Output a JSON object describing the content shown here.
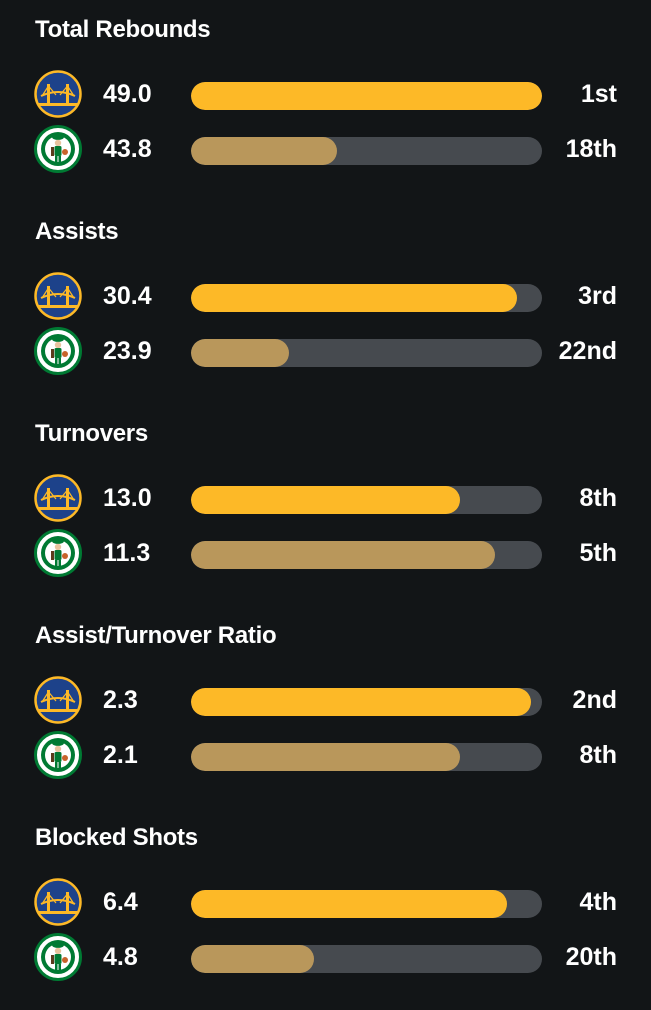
{
  "colors": {
    "background": "#121517",
    "bar_track": "#464a4f",
    "warriors_fill": "#fdb927",
    "celtics_fill": "#b9975b",
    "warriors_blue": "#1d428a",
    "celtics_green": "#007a33"
  },
  "teams": {
    "warriors": {
      "icon": "warriors-logo-icon"
    },
    "celtics": {
      "icon": "celtics-logo-icon"
    }
  },
  "sections": [
    {
      "title": "Total Rebounds",
      "rows": [
        {
          "team": "warriors",
          "value": "49.0",
          "rank": "1st",
          "fill": 1.0
        },
        {
          "team": "celtics",
          "value": "43.8",
          "rank": "18th",
          "fill": 0.415
        }
      ]
    },
    {
      "title": "Assists",
      "rows": [
        {
          "team": "warriors",
          "value": "30.4",
          "rank": "3rd",
          "fill": 0.93
        },
        {
          "team": "celtics",
          "value": "23.9",
          "rank": "22nd",
          "fill": 0.28
        }
      ]
    },
    {
      "title": "Turnovers",
      "rows": [
        {
          "team": "warriors",
          "value": "13.0",
          "rank": "8th",
          "fill": 0.765
        },
        {
          "team": "celtics",
          "value": "11.3",
          "rank": "5th",
          "fill": 0.865
        }
      ]
    },
    {
      "title": "Assist/Turnover Ratio",
      "rows": [
        {
          "team": "warriors",
          "value": "2.3",
          "rank": "2nd",
          "fill": 0.97
        },
        {
          "team": "celtics",
          "value": "2.1",
          "rank": "8th",
          "fill": 0.765
        }
      ]
    },
    {
      "title": "Blocked Shots",
      "rows": [
        {
          "team": "warriors",
          "value": "6.4",
          "rank": "4th",
          "fill": 0.9
        },
        {
          "team": "celtics",
          "value": "4.8",
          "rank": "20th",
          "fill": 0.35
        }
      ]
    }
  ]
}
